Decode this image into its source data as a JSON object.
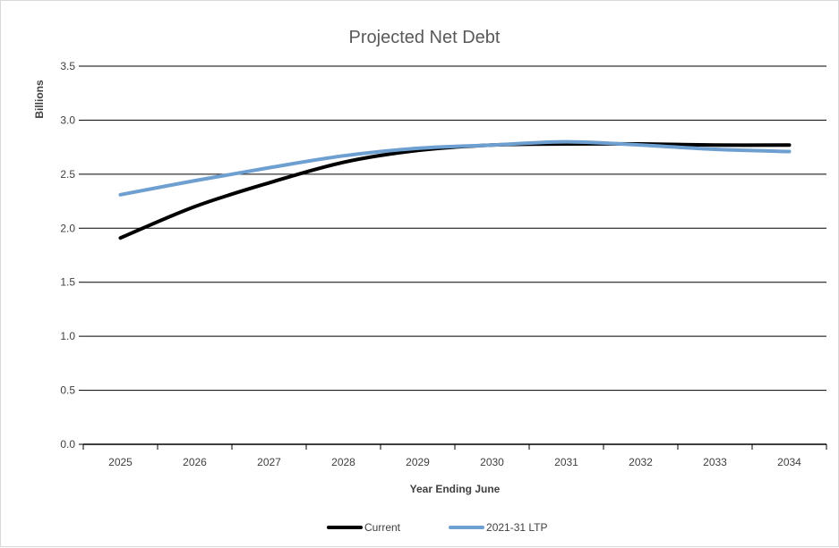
{
  "chart_data": {
    "type": "line",
    "title": "Projected Net Debt",
    "xlabel": "Year Ending June",
    "ylabel": "Billions",
    "categories": [
      "2025",
      "2026",
      "2027",
      "2028",
      "2029",
      "2030",
      "2031",
      "2032",
      "2033",
      "2034"
    ],
    "ylim": [
      0,
      3.5
    ],
    "yticks": [
      "0.0",
      "0.5",
      "1.0",
      "1.5",
      "2.0",
      "2.5",
      "3.0",
      "3.5"
    ],
    "grid": true,
    "legend_position": "bottom",
    "series": [
      {
        "name": "Current",
        "color": "#000000",
        "values": [
          1.91,
          2.2,
          2.42,
          2.61,
          2.72,
          2.77,
          2.78,
          2.78,
          2.77,
          2.77
        ]
      },
      {
        "name": "2021-31 LTP",
        "color": "#6e9fd1",
        "values": [
          2.31,
          2.44,
          2.56,
          2.67,
          2.74,
          2.77,
          2.8,
          2.77,
          2.73,
          2.71
        ]
      }
    ]
  }
}
